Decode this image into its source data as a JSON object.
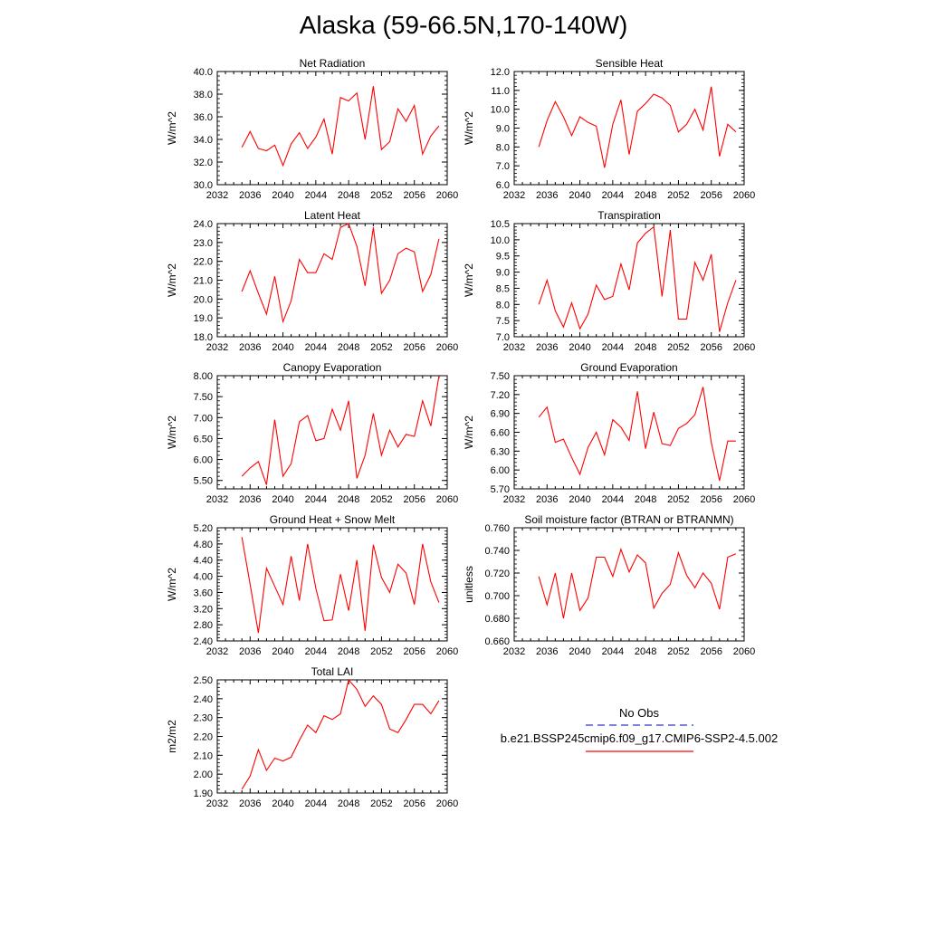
{
  "title": "Alaska (59-66.5N,170-140W)",
  "legend": {
    "placement": "lower-right",
    "entries": [
      {
        "label": "No Obs",
        "color": "#3333cc",
        "style": "dashed"
      },
      {
        "label": "b.e21.BSSP245cmip6.f09_g17.CMIP6-SSP2-4.5.002",
        "color": "#ff0000",
        "style": "solid"
      }
    ]
  },
  "colors": {
    "series": "#ff0000",
    "axis": "#000000"
  },
  "chart_data": [
    {
      "type": "line",
      "title": "Net Radiation",
      "xlabel": "",
      "ylabel": "W/m^2",
      "xlim": [
        2032,
        2060
      ],
      "ylim": [
        30,
        40
      ],
      "xticks": [
        "2032",
        "2036",
        "2040",
        "2044",
        "2048",
        "2052",
        "2056",
        "2060"
      ],
      "yticks": [
        "30.0",
        "32.0",
        "34.0",
        "36.0",
        "38.0",
        "40.0"
      ],
      "x": [
        2035,
        2036,
        2037,
        2038,
        2039,
        2040,
        2041,
        2042,
        2043,
        2044,
        2045,
        2046,
        2047,
        2048,
        2049,
        2050,
        2051,
        2052,
        2053,
        2054,
        2055,
        2056,
        2057,
        2058,
        2059
      ],
      "series": [
        {
          "values": [
            33.3,
            34.7,
            33.2,
            33.0,
            33.5,
            31.7,
            33.6,
            34.6,
            33.2,
            34.2,
            35.8,
            32.7,
            37.7,
            37.4,
            38.1,
            34.0,
            38.7,
            33.1,
            33.8,
            36.7,
            35.6,
            37.0,
            32.7,
            34.3,
            35.2
          ]
        }
      ]
    },
    {
      "type": "line",
      "title": "Sensible Heat",
      "xlabel": "",
      "ylabel": "W/m^2",
      "xlim": [
        2032,
        2060
      ],
      "ylim": [
        6,
        12
      ],
      "xticks": [
        "2032",
        "2036",
        "2040",
        "2044",
        "2048",
        "2052",
        "2056",
        "2060"
      ],
      "yticks": [
        "6.0",
        "7.0",
        "8.0",
        "9.0",
        "10.0",
        "11.0",
        "12.0"
      ],
      "x": [
        2035,
        2036,
        2037,
        2038,
        2039,
        2040,
        2041,
        2042,
        2043,
        2044,
        2045,
        2046,
        2047,
        2048,
        2049,
        2050,
        2051,
        2052,
        2053,
        2054,
        2055,
        2056,
        2057,
        2058,
        2059
      ],
      "series": [
        {
          "values": [
            8.0,
            9.4,
            10.4,
            9.6,
            8.6,
            9.6,
            9.3,
            9.1,
            6.9,
            9.2,
            10.5,
            7.6,
            9.9,
            10.3,
            10.8,
            10.6,
            10.2,
            8.8,
            9.2,
            10.0,
            8.9,
            11.2,
            7.5,
            9.2,
            8.8
          ]
        }
      ]
    },
    {
      "type": "line",
      "title": "Latent Heat",
      "xlabel": "",
      "ylabel": "W/m^2",
      "xlim": [
        2032,
        2060
      ],
      "ylim": [
        18,
        24
      ],
      "xticks": [
        "2032",
        "2036",
        "2040",
        "2044",
        "2048",
        "2052",
        "2056",
        "2060"
      ],
      "yticks": [
        "18.0",
        "19.0",
        "20.0",
        "21.0",
        "22.0",
        "23.0",
        "24.0"
      ],
      "x": [
        2035,
        2036,
        2037,
        2038,
        2039,
        2040,
        2041,
        2042,
        2043,
        2044,
        2045,
        2046,
        2047,
        2048,
        2049,
        2050,
        2051,
        2052,
        2053,
        2054,
        2055,
        2056,
        2057,
        2058,
        2059
      ],
      "series": [
        {
          "values": [
            20.4,
            21.5,
            20.3,
            19.2,
            21.2,
            18.8,
            19.9,
            22.1,
            21.4,
            21.4,
            22.4,
            22.1,
            23.8,
            24.0,
            22.8,
            20.7,
            23.8,
            20.3,
            21.0,
            22.4,
            22.7,
            22.5,
            20.4,
            21.3,
            23.2
          ]
        }
      ]
    },
    {
      "type": "line",
      "title": "Transpiration",
      "xlabel": "",
      "ylabel": "W/m^2",
      "xlim": [
        2032,
        2060
      ],
      "ylim": [
        7,
        10.5
      ],
      "xticks": [
        "2032",
        "2036",
        "2040",
        "2044",
        "2048",
        "2052",
        "2056",
        "2060"
      ],
      "yticks": [
        "7.0",
        "7.5",
        "8.0",
        "8.5",
        "9.0",
        "9.5",
        "10.0",
        "10.5"
      ],
      "x": [
        2035,
        2036,
        2037,
        2038,
        2039,
        2040,
        2041,
        2042,
        2043,
        2044,
        2045,
        2046,
        2047,
        2048,
        2049,
        2050,
        2051,
        2052,
        2053,
        2054,
        2055,
        2056,
        2057,
        2058,
        2059
      ],
      "series": [
        {
          "values": [
            8.0,
            8.75,
            7.8,
            7.3,
            8.05,
            7.25,
            7.7,
            8.6,
            8.15,
            8.25,
            9.25,
            8.45,
            9.9,
            10.2,
            10.4,
            8.25,
            10.3,
            7.55,
            7.55,
            9.3,
            8.75,
            9.55,
            7.15,
            8.05,
            8.75
          ]
        }
      ]
    },
    {
      "type": "line",
      "title": "Canopy Evaporation",
      "xlabel": "",
      "ylabel": "W/m^2",
      "xlim": [
        2032,
        2060
      ],
      "ylim": [
        5.3,
        8.0
      ],
      "xticks": [
        "2032",
        "2036",
        "2040",
        "2044",
        "2048",
        "2052",
        "2056",
        "2060"
      ],
      "yticks": [
        "5.50",
        "6.00",
        "6.50",
        "7.00",
        "7.50",
        "8.00"
      ],
      "x": [
        2035,
        2036,
        2037,
        2038,
        2039,
        2040,
        2041,
        2042,
        2043,
        2044,
        2045,
        2046,
        2047,
        2048,
        2049,
        2050,
        2051,
        2052,
        2053,
        2054,
        2055,
        2056,
        2057,
        2058,
        2059
      ],
      "series": [
        {
          "values": [
            5.6,
            5.8,
            5.95,
            5.4,
            6.95,
            5.6,
            5.9,
            6.9,
            7.05,
            6.45,
            6.5,
            7.2,
            6.7,
            7.4,
            5.55,
            6.1,
            7.1,
            6.1,
            6.7,
            6.3,
            6.6,
            6.55,
            7.4,
            6.8,
            8.0
          ]
        }
      ]
    },
    {
      "type": "line",
      "title": "Ground Evaporation",
      "xlabel": "",
      "ylabel": "W/m^2",
      "xlim": [
        2032,
        2060
      ],
      "ylim": [
        5.7,
        7.5
      ],
      "xticks": [
        "2032",
        "2036",
        "2040",
        "2044",
        "2048",
        "2052",
        "2056",
        "2060"
      ],
      "yticks": [
        "5.70",
        "6.00",
        "6.30",
        "6.60",
        "6.90",
        "7.20",
        "7.50"
      ],
      "x": [
        2035,
        2036,
        2037,
        2038,
        2039,
        2040,
        2041,
        2042,
        2043,
        2044,
        2045,
        2046,
        2047,
        2048,
        2049,
        2050,
        2051,
        2052,
        2053,
        2054,
        2055,
        2056,
        2057,
        2058,
        2059
      ],
      "series": [
        {
          "values": [
            6.84,
            7.0,
            6.44,
            6.49,
            6.2,
            5.93,
            6.36,
            6.6,
            6.24,
            6.8,
            6.68,
            6.47,
            7.25,
            6.34,
            6.92,
            6.42,
            6.39,
            6.66,
            6.74,
            6.88,
            7.32,
            6.44,
            5.83,
            6.46,
            6.46
          ]
        }
      ]
    },
    {
      "type": "line",
      "title": "Ground Heat + Snow Melt",
      "xlabel": "",
      "ylabel": "W/m^2",
      "xlim": [
        2032,
        2060
      ],
      "ylim": [
        2.4,
        5.2
      ],
      "xticks": [
        "2032",
        "2036",
        "2040",
        "2044",
        "2048",
        "2052",
        "2056",
        "2060"
      ],
      "yticks": [
        "2.40",
        "2.80",
        "3.20",
        "3.60",
        "4.00",
        "4.40",
        "4.80",
        "5.20"
      ],
      "x": [
        2035,
        2036,
        2037,
        2038,
        2039,
        2040,
        2041,
        2042,
        2043,
        2044,
        2045,
        2046,
        2047,
        2048,
        2049,
        2050,
        2051,
        2052,
        2053,
        2054,
        2055,
        2056,
        2057,
        2058,
        2059
      ],
      "series": [
        {
          "values": [
            4.97,
            3.8,
            2.6,
            4.2,
            3.75,
            3.3,
            4.5,
            3.4,
            4.8,
            3.7,
            2.9,
            2.92,
            4.05,
            3.15,
            4.4,
            2.65,
            4.78,
            3.97,
            3.6,
            4.3,
            4.08,
            3.3,
            4.8,
            3.86,
            3.35
          ]
        }
      ]
    },
    {
      "type": "line",
      "title": "Soil moisture factor (BTRAN or BTRANMN)",
      "xlabel": "",
      "ylabel": "unitless",
      "xlim": [
        2032,
        2060
      ],
      "ylim": [
        0.66,
        0.76
      ],
      "xticks": [
        "2032",
        "2036",
        "2040",
        "2044",
        "2048",
        "2052",
        "2056",
        "2060"
      ],
      "yticks": [
        "0.660",
        "0.680",
        "0.700",
        "0.720",
        "0.740",
        "0.760"
      ],
      "x": [
        2035,
        2036,
        2037,
        2038,
        2039,
        2040,
        2041,
        2042,
        2043,
        2044,
        2045,
        2046,
        2047,
        2048,
        2049,
        2050,
        2051,
        2052,
        2053,
        2054,
        2055,
        2056,
        2057,
        2058,
        2059
      ],
      "series": [
        {
          "values": [
            0.717,
            0.692,
            0.72,
            0.68,
            0.72,
            0.687,
            0.698,
            0.734,
            0.734,
            0.717,
            0.741,
            0.721,
            0.736,
            0.729,
            0.689,
            0.702,
            0.71,
            0.738,
            0.718,
            0.707,
            0.72,
            0.711,
            0.688,
            0.734,
            0.737
          ]
        }
      ]
    },
    {
      "type": "line",
      "title": "Total LAI",
      "xlabel": "",
      "ylabel": "m2/m2",
      "xlim": [
        2032,
        2060
      ],
      "ylim": [
        1.9,
        2.5
      ],
      "xticks": [
        "2032",
        "2036",
        "2040",
        "2044",
        "2048",
        "2052",
        "2056",
        "2060"
      ],
      "yticks": [
        "1.90",
        "2.00",
        "2.10",
        "2.20",
        "2.30",
        "2.40",
        "2.50"
      ],
      "x": [
        2035,
        2036,
        2037,
        2038,
        2039,
        2040,
        2041,
        2042,
        2043,
        2044,
        2045,
        2046,
        2047,
        2048,
        2049,
        2050,
        2051,
        2052,
        2053,
        2054,
        2055,
        2056,
        2057,
        2058,
        2059
      ],
      "series": [
        {
          "values": [
            1.92,
            1.99,
            2.13,
            2.02,
            2.085,
            2.07,
            2.09,
            2.18,
            2.26,
            2.22,
            2.31,
            2.29,
            2.32,
            2.5,
            2.45,
            2.36,
            2.415,
            2.37,
            2.24,
            2.22,
            2.29,
            2.37,
            2.37,
            2.32,
            2.39
          ]
        }
      ]
    }
  ]
}
